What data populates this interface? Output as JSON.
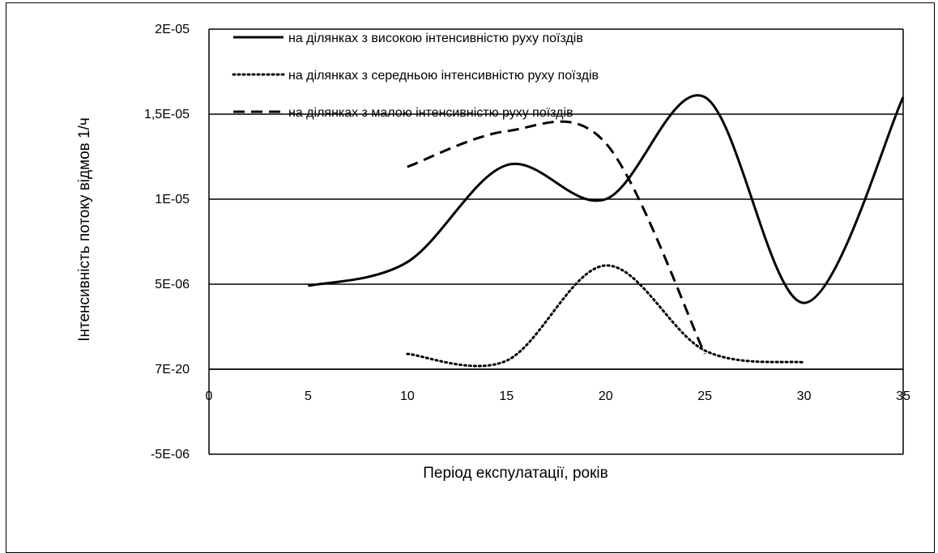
{
  "chart_data": {
    "type": "line",
    "xlabel": "Період експулатації, років",
    "ylabel": "Інтенсивність потоку відмов 1/ч",
    "xlim": [
      0,
      35
    ],
    "ylim": [
      -5e-06,
      2e-05
    ],
    "x_ticks": [
      0,
      5,
      10,
      15,
      20,
      25,
      30,
      35
    ],
    "y_ticks": [
      -5e-06,
      0,
      5e-06,
      1e-05,
      1.5e-05,
      2e-05
    ],
    "x_tick_labels": [
      "0",
      "5",
      "10",
      "15",
      "20",
      "25",
      "30",
      "35"
    ],
    "y_tick_labels": [
      "-5E-06",
      "7E-20",
      "5E-06",
      "1E-05",
      "1,5E-05",
      "2E-05"
    ],
    "grid": "horizontal",
    "legend": "top",
    "series": [
      {
        "name": "на ділянках з високою інтенсивністю руху поїздів",
        "style": "solid",
        "x": [
          5,
          10,
          15,
          20,
          25,
          30,
          35
        ],
        "y": [
          4.9e-06,
          6.3e-06,
          1.2e-05,
          1e-05,
          1.6e-05,
          3.9e-06,
          1.6e-05
        ]
      },
      {
        "name": "на ділянках з середньою інтенсивністю руху поїздів",
        "style": "dotted",
        "x": [
          10,
          15,
          20,
          25,
          30
        ],
        "y": [
          9e-07,
          5e-07,
          6.1e-06,
          1.1e-06,
          4e-07
        ]
      },
      {
        "name": "на ділянках з малою інтенсивністю руху поїздів",
        "style": "dashed",
        "x": [
          10,
          15,
          20,
          25
        ],
        "y": [
          1.19e-05,
          1.4e-05,
          1.33e-05,
          9e-07
        ]
      }
    ]
  }
}
